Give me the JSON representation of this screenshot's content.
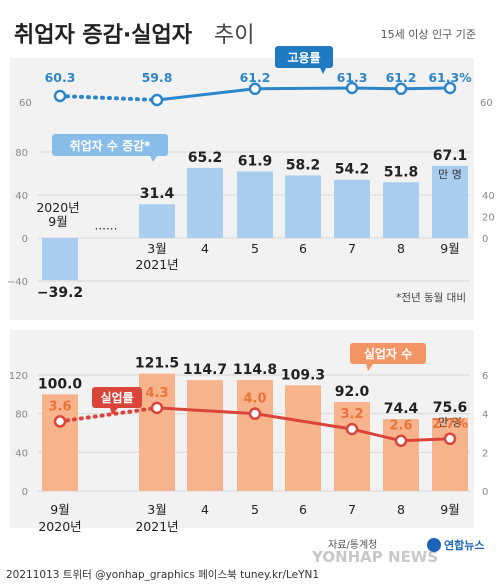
{
  "header": {
    "title_bold": "취업자 증감·실업자",
    "title_light": "추이",
    "subtitle": "15세 이상 인구 기준"
  },
  "footer": {
    "left": "20211013  트위터 @yonhap_graphics  페이스북 tuney.kr/LeYN1",
    "source": "자료/통계청",
    "watermark": "YONHAP NEWS",
    "logo": "연합뉴스"
  },
  "colors": {
    "blue_line": "#2e86c9",
    "blue_bar": "#a9cdee",
    "orange_bar": "#f7b38c",
    "red_line": "#d9453a",
    "orange_text": "#e8743b",
    "axis_text": "#888888",
    "panel_bg": "#f2f2f2",
    "grid": "#d8d8d8"
  },
  "chart_data": [
    {
      "type": "line",
      "name": "employment-rate",
      "series": [
        {
          "name": "고용률",
          "values": [
            60.3,
            59.8,
            61.2,
            61.3,
            61.2,
            61.3
          ]
        }
      ],
      "x_labels_top": [
        "60.3",
        "59.8",
        "61.2",
        "61.3",
        "61.2",
        "61.3%"
      ],
      "categories": [
        "2020년 9월",
        "2021년 3월",
        "5",
        "7",
        "8",
        "9월"
      ],
      "y_ticks": [
        "60"
      ],
      "legend": "고용률"
    },
    {
      "type": "bar",
      "name": "employment-change",
      "legend": "취업자 수 증감*",
      "categories": [
        "2020년 9월",
        "3월 2021년",
        "4",
        "5",
        "6",
        "7",
        "8",
        "9월"
      ],
      "tick_labels": [
        {
          "line1": "2020년",
          "line2": "9월"
        },
        {
          "line1": "3월",
          "line2": "2021년"
        },
        {
          "line1": "4",
          "line2": ""
        },
        {
          "line1": "5",
          "line2": ""
        },
        {
          "line1": "6",
          "line2": ""
        },
        {
          "line1": "7",
          "line2": ""
        },
        {
          "line1": "8",
          "line2": ""
        },
        {
          "line1": "9월",
          "line2": ""
        }
      ],
      "values": [
        -39.2,
        31.4,
        65.2,
        61.9,
        58.2,
        54.2,
        51.8,
        67.1
      ],
      "value_labels": [
        "−39.2",
        "31.4",
        "65.2",
        "61.9",
        "58.2",
        "54.2",
        "51.8",
        "67.1"
      ],
      "unit": "만 명",
      "gap_marker": "······",
      "y_ticks_left": [
        "80",
        "40",
        "0",
        "−40"
      ],
      "y_ticks_right": [
        "40",
        "20",
        "0"
      ],
      "ylim": [
        -45,
        80
      ],
      "note": "*전년 동월 대비"
    },
    {
      "type": "bar",
      "name": "unemployment",
      "legend_bar": "실업자 수",
      "legend_line": "실업률",
      "categories": [
        "9월 2020년",
        "3월 2021년",
        "4",
        "5",
        "6",
        "7",
        "8",
        "9월"
      ],
      "tick_labels": [
        {
          "line1": "9월",
          "line2": "2020년"
        },
        {
          "line1": "3월",
          "line2": "2021년"
        },
        {
          "line1": "4",
          "line2": ""
        },
        {
          "line1": "5",
          "line2": ""
        },
        {
          "line1": "6",
          "line2": ""
        },
        {
          "line1": "7",
          "line2": ""
        },
        {
          "line1": "8",
          "line2": ""
        },
        {
          "line1": "9월",
          "line2": ""
        }
      ],
      "values": [
        100.0,
        121.5,
        114.7,
        114.8,
        109.3,
        92.0,
        74.4,
        75.6
      ],
      "value_labels": [
        "100.0",
        "121.5",
        "114.7",
        "114.8",
        "109.3",
        "92.0",
        "74.4",
        "75.6"
      ],
      "unit": "만 명",
      "rate_points": [
        {
          "index": 0,
          "value": 3.6,
          "label": "3.6"
        },
        {
          "index": 1,
          "value": 4.3,
          "label": "4.3"
        },
        {
          "index": 3,
          "value": 4.0,
          "label": "4.0"
        },
        {
          "index": 5,
          "value": 3.2,
          "label": "3.2"
        },
        {
          "index": 6,
          "value": 2.6,
          "label": "2.6"
        },
        {
          "index": 7,
          "value": 2.7,
          "label": "2.7%"
        }
      ],
      "y_ticks_left": [
        "120",
        "80",
        "40",
        "0"
      ],
      "y_ticks_right": [
        "6",
        "4",
        "2",
        "0"
      ],
      "ylim": [
        0,
        130
      ]
    }
  ]
}
